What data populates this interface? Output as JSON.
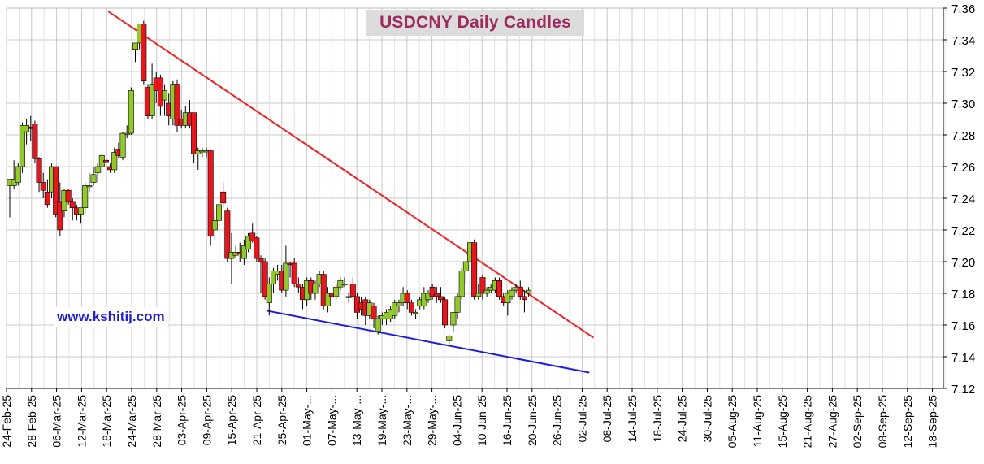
{
  "chart_data": {
    "type": "candlestick",
    "title": "USDCNY Daily Candles",
    "watermark": "www.kshitij.com",
    "y_axis": {
      "min": 7.12,
      "max": 7.36,
      "step": 0.02,
      "position": "right",
      "tick_labels": [
        "7.12",
        "7.14",
        "7.16",
        "7.18",
        "7.20",
        "7.22",
        "7.24",
        "7.26",
        "7.28",
        "7.30",
        "7.32",
        "7.34",
        "7.36"
      ]
    },
    "x_axis": {
      "tick_labels": [
        "24-Feb-25",
        "28-Feb-25",
        "06-Mar-25",
        "12-Mar-25",
        "18-Mar-25",
        "24-Mar-25",
        "28-Mar-25",
        "03-Apr-25",
        "09-Apr-25",
        "15-Apr-25",
        "21-Apr-25",
        "25-Apr-25",
        "01-May-...",
        "07-May-...",
        "13-May-...",
        "19-May-...",
        "23-May-...",
        "29-May-...",
        "04-Jun-25",
        "10-Jun-25",
        "16-Jun-25",
        "20-Jun-25",
        "26-Jun-25",
        "02-Jul-25",
        "08-Jul-25",
        "14-Jul-25",
        "18-Jul-25",
        "24-Jul-25",
        "30-Jul-25",
        "05-Aug-25",
        "11-Aug-25",
        "15-Aug-25",
        "21-Aug-25",
        "27-Aug-25",
        "02-Sep-25",
        "08-Sep-25",
        "12-Sep-25",
        "18-Sep-25"
      ]
    },
    "grid": true,
    "colors": {
      "up": "#92c82a",
      "down": "#e8161c",
      "resistance": "#ee2222",
      "support": "#1c1cdc",
      "title_text": "#9e2a5e",
      "title_bg": "#dcdcdc",
      "grid": "#c8c8c8"
    },
    "candles": [
      {
        "o": 7.248,
        "h": 7.252,
        "l": 7.228,
        "c": 7.252
      },
      {
        "o": 7.248,
        "h": 7.264,
        "l": 7.246,
        "c": 7.252
      },
      {
        "o": 7.25,
        "h": 7.262,
        "l": 7.248,
        "c": 7.26
      },
      {
        "o": 7.26,
        "h": 7.288,
        "l": 7.256,
        "c": 7.286
      },
      {
        "o": 7.282,
        "h": 7.29,
        "l": 7.274,
        "c": 7.286
      },
      {
        "o": 7.285,
        "h": 7.292,
        "l": 7.276,
        "c": 7.284
      },
      {
        "o": 7.287,
        "h": 7.289,
        "l": 7.262,
        "c": 7.265
      },
      {
        "o": 7.265,
        "h": 7.266,
        "l": 7.244,
        "c": 7.25
      },
      {
        "o": 7.25,
        "h": 7.256,
        "l": 7.24,
        "c": 7.245
      },
      {
        "o": 7.244,
        "h": 7.252,
        "l": 7.234,
        "c": 7.236
      },
      {
        "o": 7.244,
        "h": 7.262,
        "l": 7.24,
        "c": 7.26
      },
      {
        "o": 7.26,
        "h": 7.26,
        "l": 7.228,
        "c": 7.23
      },
      {
        "o": 7.238,
        "h": 7.25,
        "l": 7.216,
        "c": 7.22
      },
      {
        "o": 7.232,
        "h": 7.246,
        "l": 7.228,
        "c": 7.245
      },
      {
        "o": 7.245,
        "h": 7.246,
        "l": 7.236,
        "c": 7.238
      },
      {
        "o": 7.238,
        "h": 7.24,
        "l": 7.226,
        "c": 7.234
      },
      {
        "o": 7.234,
        "h": 7.236,
        "l": 7.226,
        "c": 7.23
      },
      {
        "o": 7.23,
        "h": 7.234,
        "l": 7.224,
        "c": 7.234
      },
      {
        "o": 7.234,
        "h": 7.25,
        "l": 7.23,
        "c": 7.248
      },
      {
        "o": 7.248,
        "h": 7.256,
        "l": 7.244,
        "c": 7.248
      },
      {
        "o": 7.25,
        "h": 7.26,
        "l": 7.248,
        "c": 7.255
      },
      {
        "o": 7.256,
        "h": 7.262,
        "l": 7.25,
        "c": 7.26
      },
      {
        "o": 7.26,
        "h": 7.268,
        "l": 7.256,
        "c": 7.267
      },
      {
        "o": 7.264,
        "h": 7.266,
        "l": 7.262,
        "c": 7.263
      },
      {
        "o": 7.26,
        "h": 7.262,
        "l": 7.256,
        "c": 7.258
      },
      {
        "o": 7.258,
        "h": 7.272,
        "l": 7.256,
        "c": 7.269
      },
      {
        "o": 7.271,
        "h": 7.275,
        "l": 7.265,
        "c": 7.267
      },
      {
        "o": 7.266,
        "h": 7.282,
        "l": 7.264,
        "c": 7.281
      },
      {
        "o": 7.281,
        "h": 7.286,
        "l": 7.278,
        "c": 7.281
      },
      {
        "o": 7.281,
        "h": 7.31,
        "l": 7.28,
        "c": 7.308
      },
      {
        "o": 7.334,
        "h": 7.338,
        "l": 7.326,
        "c": 7.338
      },
      {
        "o": 7.338,
        "h": 7.35,
        "l": 7.334,
        "c": 7.35
      },
      {
        "o": 7.35,
        "h": 7.352,
        "l": 7.312,
        "c": 7.314
      },
      {
        "o": 7.31,
        "h": 7.312,
        "l": 7.29,
        "c": 7.292
      },
      {
        "o": 7.292,
        "h": 7.325,
        "l": 7.29,
        "c": 7.312
      },
      {
        "o": 7.316,
        "h": 7.32,
        "l": 7.3,
        "c": 7.308
      },
      {
        "o": 7.316,
        "h": 7.318,
        "l": 7.292,
        "c": 7.298
      },
      {
        "o": 7.302,
        "h": 7.312,
        "l": 7.292,
        "c": 7.308
      },
      {
        "o": 7.3,
        "h": 7.306,
        "l": 7.286,
        "c": 7.292
      },
      {
        "o": 7.29,
        "h": 7.314,
        "l": 7.286,
        "c": 7.312
      },
      {
        "o": 7.312,
        "h": 7.315,
        "l": 7.282,
        "c": 7.286
      },
      {
        "o": 7.29,
        "h": 7.296,
        "l": 7.284,
        "c": 7.286
      },
      {
        "o": 7.286,
        "h": 7.298,
        "l": 7.284,
        "c": 7.294
      },
      {
        "o": 7.294,
        "h": 7.302,
        "l": 7.284,
        "c": 7.286
      },
      {
        "o": 7.294,
        "h": 7.294,
        "l": 7.262,
        "c": 7.268
      },
      {
        "o": 7.268,
        "h": 7.272,
        "l": 7.258,
        "c": 7.27
      },
      {
        "o": 7.27,
        "h": 7.272,
        "l": 7.266,
        "c": 7.27
      },
      {
        "o": 7.27,
        "h": 7.272,
        "l": 7.266,
        "c": 7.27
      },
      {
        "o": 7.27,
        "h": 7.27,
        "l": 7.21,
        "c": 7.216
      },
      {
        "o": 7.22,
        "h": 7.232,
        "l": 7.214,
        "c": 7.226
      },
      {
        "o": 7.226,
        "h": 7.238,
        "l": 7.222,
        "c": 7.236
      },
      {
        "o": 7.244,
        "h": 7.25,
        "l": 7.234,
        "c": 7.237
      },
      {
        "o": 7.232,
        "h": 7.234,
        "l": 7.2,
        "c": 7.202
      },
      {
        "o": 7.202,
        "h": 7.218,
        "l": 7.186,
        "c": 7.206
      },
      {
        "o": 7.204,
        "h": 7.21,
        "l": 7.202,
        "c": 7.206
      },
      {
        "o": 7.206,
        "h": 7.212,
        "l": 7.2,
        "c": 7.205
      },
      {
        "o": 7.202,
        "h": 7.214,
        "l": 7.198,
        "c": 7.21
      },
      {
        "o": 7.208,
        "h": 7.218,
        "l": 7.206,
        "c": 7.216
      },
      {
        "o": 7.218,
        "h": 7.224,
        "l": 7.212,
        "c": 7.213
      },
      {
        "o": 7.215,
        "h": 7.216,
        "l": 7.2,
        "c": 7.202
      },
      {
        "o": 7.202,
        "h": 7.204,
        "l": 7.18,
        "c": 7.2
      },
      {
        "o": 7.2,
        "h": 7.202,
        "l": 7.176,
        "c": 7.178
      },
      {
        "o": 7.174,
        "h": 7.19,
        "l": 7.166,
        "c": 7.186
      },
      {
        "o": 7.186,
        "h": 7.196,
        "l": 7.18,
        "c": 7.194
      },
      {
        "o": 7.192,
        "h": 7.198,
        "l": 7.188,
        "c": 7.194
      },
      {
        "o": 7.194,
        "h": 7.198,
        "l": 7.18,
        "c": 7.182
      },
      {
        "o": 7.182,
        "h": 7.21,
        "l": 7.178,
        "c": 7.199
      },
      {
        "o": 7.199,
        "h": 7.2,
        "l": 7.19,
        "c": 7.198
      },
      {
        "o": 7.199,
        "h": 7.202,
        "l": 7.184,
        "c": 7.186
      },
      {
        "o": 7.186,
        "h": 7.19,
        "l": 7.18,
        "c": 7.184
      },
      {
        "o": 7.184,
        "h": 7.186,
        "l": 7.17,
        "c": 7.176
      },
      {
        "o": 7.176,
        "h": 7.19,
        "l": 7.172,
        "c": 7.188
      },
      {
        "o": 7.188,
        "h": 7.19,
        "l": 7.176,
        "c": 7.18
      },
      {
        "o": 7.18,
        "h": 7.188,
        "l": 7.176,
        "c": 7.186
      },
      {
        "o": 7.186,
        "h": 7.194,
        "l": 7.184,
        "c": 7.192
      },
      {
        "o": 7.192,
        "h": 7.194,
        "l": 7.17,
        "c": 7.172
      },
      {
        "o": 7.172,
        "h": 7.184,
        "l": 7.168,
        "c": 7.18
      },
      {
        "o": 7.18,
        "h": 7.184,
        "l": 7.176,
        "c": 7.178
      },
      {
        "o": 7.178,
        "h": 7.186,
        "l": 7.176,
        "c": 7.184
      },
      {
        "o": 7.184,
        "h": 7.19,
        "l": 7.182,
        "c": 7.188
      },
      {
        "o": 7.186,
        "h": 7.19,
        "l": 7.184,
        "c": 7.186
      },
      {
        "o": 7.178,
        "h": 7.18,
        "l": 7.174,
        "c": 7.178
      },
      {
        "o": 7.186,
        "h": 7.19,
        "l": 7.176,
        "c": 7.178
      },
      {
        "o": 7.178,
        "h": 7.18,
        "l": 7.164,
        "c": 7.168
      },
      {
        "o": 7.174,
        "h": 7.178,
        "l": 7.166,
        "c": 7.17
      },
      {
        "o": 7.176,
        "h": 7.178,
        "l": 7.16,
        "c": 7.166
      },
      {
        "o": 7.166,
        "h": 7.176,
        "l": 7.164,
        "c": 7.174
      },
      {
        "o": 7.172,
        "h": 7.174,
        "l": 7.158,
        "c": 7.164
      },
      {
        "o": 7.156,
        "h": 7.166,
        "l": 7.154,
        "c": 7.164
      },
      {
        "o": 7.164,
        "h": 7.168,
        "l": 7.16,
        "c": 7.166
      },
      {
        "o": 7.164,
        "h": 7.17,
        "l": 7.16,
        "c": 7.168
      },
      {
        "o": 7.164,
        "h": 7.172,
        "l": 7.162,
        "c": 7.17
      },
      {
        "o": 7.166,
        "h": 7.176,
        "l": 7.164,
        "c": 7.174
      },
      {
        "o": 7.172,
        "h": 7.176,
        "l": 7.168,
        "c": 7.174
      },
      {
        "o": 7.174,
        "h": 7.184,
        "l": 7.172,
        "c": 7.18
      },
      {
        "o": 7.18,
        "h": 7.182,
        "l": 7.17,
        "c": 7.174
      },
      {
        "o": 7.174,
        "h": 7.176,
        "l": 7.166,
        "c": 7.168
      },
      {
        "o": 7.168,
        "h": 7.17,
        "l": 7.164,
        "c": 7.168
      },
      {
        "o": 7.172,
        "h": 7.178,
        "l": 7.17,
        "c": 7.176
      },
      {
        "o": 7.172,
        "h": 7.184,
        "l": 7.17,
        "c": 7.18
      },
      {
        "o": 7.176,
        "h": 7.182,
        "l": 7.174,
        "c": 7.18
      },
      {
        "o": 7.184,
        "h": 7.186,
        "l": 7.176,
        "c": 7.178
      },
      {
        "o": 7.18,
        "h": 7.184,
        "l": 7.174,
        "c": 7.178
      },
      {
        "o": 7.178,
        "h": 7.184,
        "l": 7.174,
        "c": 7.176
      },
      {
        "o": 7.176,
        "h": 7.178,
        "l": 7.158,
        "c": 7.16
      },
      {
        "o": 7.15,
        "h": 7.154,
        "l": 7.148,
        "c": 7.153
      },
      {
        "o": 7.16,
        "h": 7.168,
        "l": 7.156,
        "c": 7.168
      },
      {
        "o": 7.168,
        "h": 7.18,
        "l": 7.164,
        "c": 7.178
      },
      {
        "o": 7.178,
        "h": 7.196,
        "l": 7.176,
        "c": 7.194
      },
      {
        "o": 7.194,
        "h": 7.2,
        "l": 7.186,
        "c": 7.2
      },
      {
        "o": 7.2,
        "h": 7.214,
        "l": 7.198,
        "c": 7.212
      },
      {
        "o": 7.212,
        "h": 7.214,
        "l": 7.176,
        "c": 7.178
      },
      {
        "o": 7.178,
        "h": 7.186,
        "l": 7.176,
        "c": 7.18
      },
      {
        "o": 7.19,
        "h": 7.192,
        "l": 7.176,
        "c": 7.18
      },
      {
        "o": 7.18,
        "h": 7.184,
        "l": 7.178,
        "c": 7.182
      },
      {
        "o": 7.182,
        "h": 7.186,
        "l": 7.18,
        "c": 7.184
      },
      {
        "o": 7.182,
        "h": 7.19,
        "l": 7.18,
        "c": 7.188
      },
      {
        "o": 7.188,
        "h": 7.19,
        "l": 7.176,
        "c": 7.178
      },
      {
        "o": 7.178,
        "h": 7.18,
        "l": 7.172,
        "c": 7.174
      },
      {
        "o": 7.174,
        "h": 7.182,
        "l": 7.166,
        "c": 7.18
      },
      {
        "o": 7.178,
        "h": 7.184,
        "l": 7.176,
        "c": 7.182
      },
      {
        "o": 7.182,
        "h": 7.186,
        "l": 7.18,
        "c": 7.184
      },
      {
        "o": 7.184,
        "h": 7.188,
        "l": 7.176,
        "c": 7.178
      },
      {
        "o": 7.178,
        "h": 7.182,
        "l": 7.168,
        "c": 7.176
      },
      {
        "o": 7.18,
        "h": 7.184,
        "l": 7.178,
        "c": 7.182
      }
    ],
    "trendlines": [
      {
        "role": "resistance",
        "from": {
          "candle": 23.5,
          "y": 7.358
        },
        "to": {
          "candle": 139.5,
          "y": 7.152
        }
      },
      {
        "role": "support",
        "from": {
          "candle": 61.5,
          "y": 7.169
        },
        "to": {
          "candle": 138.5,
          "y": 7.13
        }
      }
    ]
  }
}
